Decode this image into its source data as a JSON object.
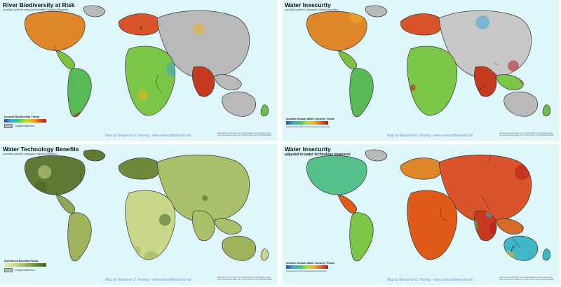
{
  "credit": "Map by Benjamin D. Hennig - www.viewsoftheworld.net",
  "sources": "Data Sources: Vörösmarty CJ et al. Global threats to human water security and river biodiversity. Nature 467, 555-561 (2010). doi:10.1038/nature09440",
  "no_data_label": "no appreciable flow",
  "colors": {
    "ocean": "#dff7fb",
    "land_gray": "#b9b9b9",
    "scale_threat": [
      "#2c48a8",
      "#3fa7d6",
      "#38c76b",
      "#b7dd2a",
      "#f0b020",
      "#e05a1a",
      "#b8161b"
    ],
    "scale_benefit": [
      "#e7edb6",
      "#c8d78a",
      "#9fb35c",
      "#6f8a3a",
      "#43602a"
    ]
  },
  "panels": [
    {
      "title": "River Biodiversity at Risk",
      "subtitle": "population-gridded cartogram (Gridded Population Mapping)",
      "legend_title": "Incident Biodiversity Threat",
      "theme": "threat"
    },
    {
      "title": "Water Insecurity",
      "subtitle": "population-gridded cartogram of global population",
      "legend_title": "Incident Human Water Security Threat",
      "legend_note": "(threat levels without technological investment)",
      "theme": "threat2"
    },
    {
      "title": "Water Technology Benefits",
      "subtitle": "population-gridded cartogram of global population",
      "legend_title": "Investment Benefits Factor",
      "theme": "benefit"
    },
    {
      "title": "Water Insecurity",
      "subtitle": "adjusted to water technology measures",
      "legend_title": "Incident Human Water Security Threat",
      "legend_note": "(threat levels with technological investment)",
      "theme": "adjusted"
    }
  ]
}
